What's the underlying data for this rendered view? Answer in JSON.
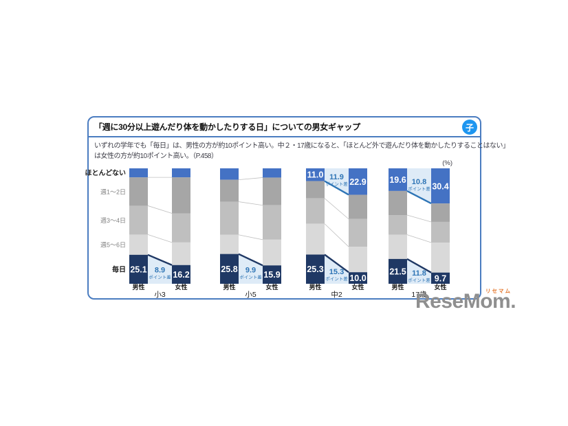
{
  "header": {
    "title": "「週に30分以上遊んだり体を動かしたりする日」についての男女ギャップ",
    "badge": "子"
  },
  "description": {
    "line1": "いずれの学年でも「毎日」は、男性の方が約10ポイント高い。中２・17歳になると、「ほとんど外で遊んだり体を動かしたりすることはない」",
    "line2": "は女性の方が約10ポイント高い。（P.458）"
  },
  "unit_label": "(%)",
  "watermark": {
    "ruby": "リセマム",
    "text": "ReseMom."
  },
  "colors": {
    "segment_colors": [
      "#4472C4",
      "#A6A6A6",
      "#BFBFBF",
      "#D9D9D9",
      "#1F3864"
    ],
    "diff_fill": "#DEEBF7",
    "diff_text": "#2E74B5",
    "top_diff_line": "#2E75B6",
    "bottom_diff_line": "#1F3864",
    "connector": "#BFBFBF",
    "card_border": "#4A7CC0",
    "badge_bg": "#1E96F0",
    "logo_gray": "#8F8F8F",
    "logo_accent": "#E4762B"
  },
  "chart_data": {
    "type": "bar",
    "subtype": "paired-stacked-percentage",
    "unit": "%",
    "category_labels": [
      "ほとんどない",
      "週1～2日",
      "週3～4日",
      "週5～6日",
      "毎日"
    ],
    "bar_labels": {
      "male": "男性",
      "female": "女性"
    },
    "diff_label": "ポイント差",
    "groups": [
      {
        "label": "小3",
        "male": {
          "segments": [
            7.8,
            24.6,
            25.0,
            17.5,
            25.1
          ],
          "daily_label": "25.1",
          "never_label": null
        },
        "female": {
          "segments": [
            7.8,
            31.2,
            25.2,
            19.6,
            16.2
          ],
          "daily_label": "16.2",
          "never_label": null
        },
        "daily_diff_label": "8.9",
        "never_diff_label": null
      },
      {
        "label": "小5",
        "male": {
          "segments": [
            9.9,
            19.0,
            28.7,
            16.6,
            25.8
          ],
          "daily_label": "25.8",
          "never_label": null
        },
        "female": {
          "segments": [
            8.0,
            24.0,
            29.8,
            22.3,
            15.9
          ],
          "daily_label": "15.9",
          "never_label": null
        },
        "daily_diff_label": "9.9",
        "never_diff_label": null
      },
      {
        "label": "中2",
        "male": {
          "segments": [
            11.0,
            15.0,
            22.0,
            26.7,
            25.3
          ],
          "daily_label": "25.3",
          "never_label": "11.0"
        },
        "female": {
          "segments": [
            22.9,
            21.0,
            24.0,
            22.1,
            10.0
          ],
          "daily_label": "10.0",
          "never_label": "22.9"
        },
        "daily_diff_label": "15.3",
        "never_diff_label": "11.9"
      },
      {
        "label": "17歳",
        "male": {
          "segments": [
            19.6,
            20.9,
            17.0,
            21.0,
            21.5
          ],
          "daily_label": "21.5",
          "never_label": "19.6"
        },
        "female": {
          "segments": [
            30.4,
            16.0,
            17.9,
            26.0,
            9.7
          ],
          "daily_label": "9.7",
          "never_label": "30.4"
        },
        "daily_diff_label": "11.8",
        "never_diff_label": "10.8"
      }
    ]
  }
}
